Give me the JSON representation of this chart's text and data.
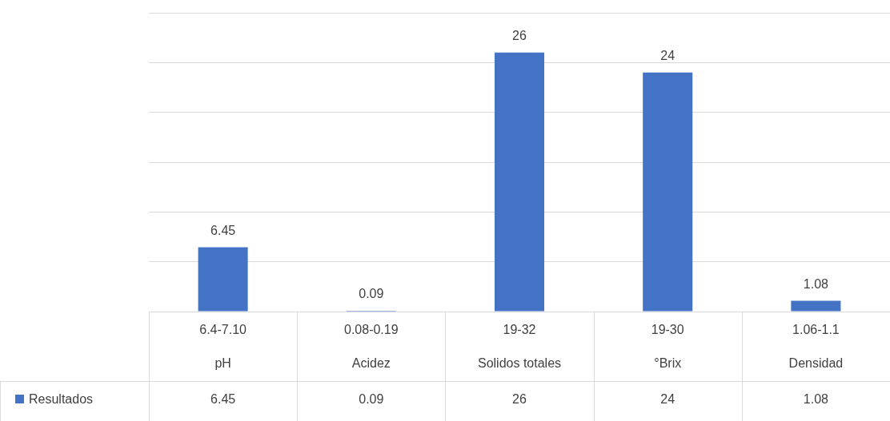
{
  "chart_data": {
    "type": "bar",
    "categories": [
      "pH",
      "Acidez",
      "Solidos totales",
      "°Brix",
      "Densidad"
    ],
    "annotations": [
      "6.4-7.10",
      "0.08-0.19",
      "19-32",
      "19-30",
      "1.06-1.1",
      {
        "text": "6.45",
        "x": "pH",
        "y": 6.45
      },
      {
        "text": "0.09",
        "x": "Acidez",
        "y": 0.09
      },
      {
        "text": "26",
        "x": "Solidos totales",
        "y": 26
      },
      {
        "text": "24",
        "x": "°Brix",
        "y": 24
      },
      {
        "text": "1.08",
        "x": "Densidad",
        "y": 1.08
      }
    ],
    "series": [
      {
        "name": "Resultados",
        "color": "#4472c4",
        "values": [
          6.45,
          0.09,
          26,
          24,
          1.08
        ]
      }
    ],
    "ylim": [
      0,
      30
    ],
    "yticks": [
      {
        "value": 0,
        "label": null
      },
      {
        "value": 5,
        "label": null
      },
      {
        "value": 10,
        "label": null
      },
      {
        "value": 15,
        "label": null
      },
      {
        "value": 20,
        "label": null
      },
      {
        "value": 25,
        "label": null
      },
      {
        "value": 30,
        "label": null
      }
    ],
    "tick_labels": "x",
    "grid": "y",
    "data_labels": true,
    "legend": "bottom left"
  }
}
